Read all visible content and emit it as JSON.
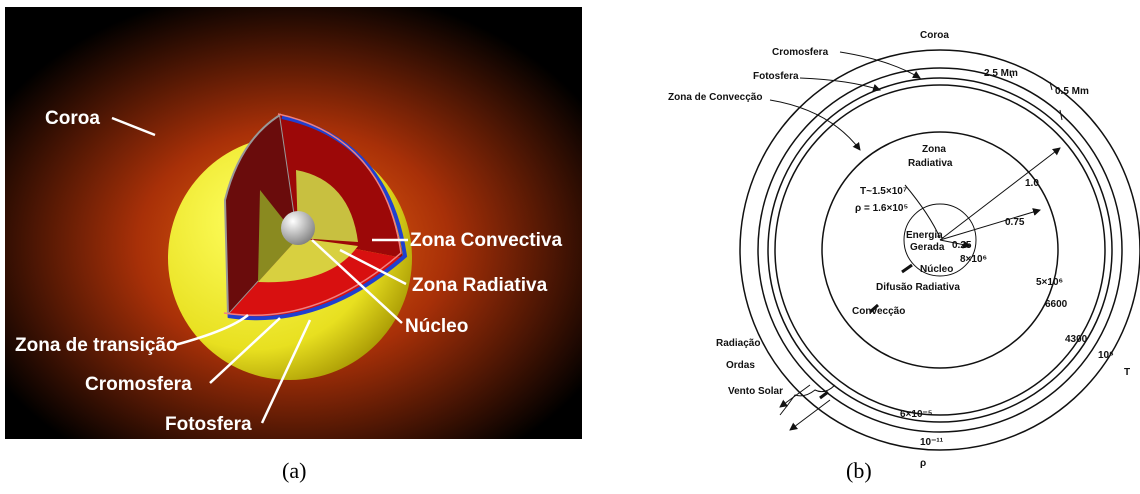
{
  "panel_a": {
    "labels": [
      "Coroa",
      "Zona Convectiva",
      "Zona Radiativa",
      "Núcleo",
      "Zona de transição",
      "Cromosfera",
      "Fotosfera"
    ],
    "caption": "(a)"
  },
  "panel_b": {
    "labels": [
      "Coroa",
      "Cromosfera",
      "Fotosfera",
      "Zona de Convecção",
      "2.5 Mm",
      "0.5 Mm",
      "Zona",
      "Radiativa",
      "1.0",
      "0.75",
      "0.25",
      "T~1.5×10⁷",
      "ρ = 1.6×10⁵",
      "Energia",
      "Gerada",
      "8×10⁶",
      "Núcleo",
      "Difusão Radiativa",
      "5×10⁶",
      "6600",
      "4300",
      "10⁶",
      "T",
      "Convecção",
      "Radiação",
      "Ordas",
      "Vento Solar",
      "6×10⁻⁵",
      "10⁻¹¹",
      "ρ"
    ],
    "caption": "(b)"
  }
}
